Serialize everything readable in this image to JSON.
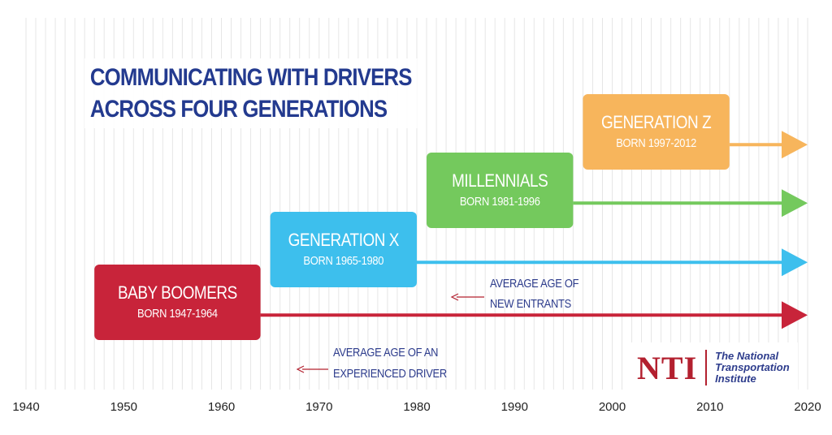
{
  "title": {
    "line1": "COMMUNICATING WITH DRIVERS",
    "line2": "ACROSS FOUR GENERATIONS"
  },
  "logo": {
    "mark": "NTI",
    "line1": "The National",
    "line2": "Transportation",
    "line3": "Institute"
  },
  "colors": {
    "baby_boomers": "#c8243a",
    "generation_x": "#3dbfed",
    "millennials": "#74c95d",
    "generation_z": "#f7b55c",
    "title": "#233a8f",
    "annotation": "#2d3c8c",
    "annotation_arrow": "#b3202f"
  },
  "chart_data": {
    "type": "timeline",
    "title": "COMMUNICATING WITH DRIVERS ACROSS FOUR GENERATIONS",
    "xlim": [
      1940,
      2020
    ],
    "x_ticks": [
      1940,
      1950,
      1960,
      1970,
      1980,
      1990,
      2000,
      2010,
      2020
    ],
    "grid": "vertical lines every year",
    "series": [
      {
        "name": "BABY BOOMERS",
        "label": "BORN 1947-1964",
        "start": 1947,
        "end": 1964,
        "arrow_to": 2020,
        "color": "#c8243a"
      },
      {
        "name": "GENERATION X",
        "label": "BORN 1965-1980",
        "start": 1965,
        "end": 1980,
        "arrow_to": 2020,
        "color": "#3dbfed"
      },
      {
        "name": "MILLENNIALS",
        "label": "BORN 1981-1996",
        "start": 1981,
        "end": 1996,
        "arrow_to": 2020,
        "color": "#74c95d"
      },
      {
        "name": "GENERATION Z",
        "label": "BORN 1997-2012",
        "start": 1997,
        "end": 2012,
        "arrow_to": 2020,
        "color": "#f7b55c"
      }
    ],
    "annotations": [
      {
        "line1": "AVERAGE AGE OF",
        "line2": "NEW ENTRANTS",
        "x": 1984
      },
      {
        "line1": "AVERAGE AGE OF AN",
        "line2": "EXPERIENCED DRIVER",
        "x": 1969
      }
    ]
  }
}
